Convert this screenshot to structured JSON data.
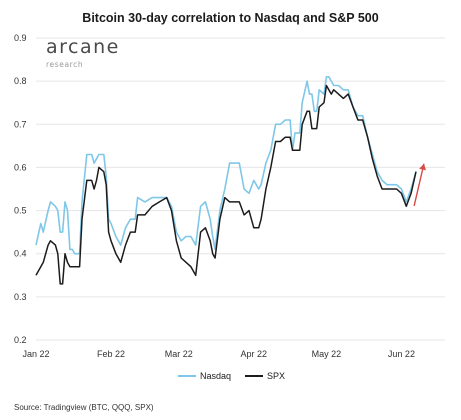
{
  "chart_data": {
    "type": "line",
    "title": "Bitcoin 30-day correlation to Nasdaq and S&P 500",
    "xlabel": "",
    "ylabel": "",
    "x_ticks": [
      "Jan 22",
      "Feb 22",
      "Mar 22",
      "Apr 22",
      "May 22",
      "Jun 22"
    ],
    "x_tick_dates": [
      "2022-01-01",
      "2022-02-01",
      "2022-03-01",
      "2022-04-01",
      "2022-05-01",
      "2022-06-01"
    ],
    "x_range": [
      "2022-01-01",
      "2022-06-19"
    ],
    "y_ticks": [
      "0.2",
      "0.3",
      "0.4",
      "0.5",
      "0.6",
      "0.7",
      "0.8",
      "0.9"
    ],
    "ylim": [
      0.2,
      0.9
    ],
    "grid": "horizontal",
    "legend_position": "bottom-center",
    "series": [
      {
        "name": "Nasdaq",
        "color": "#7fc7e8",
        "points": [
          [
            "2022-01-01",
            0.42
          ],
          [
            "2022-01-03",
            0.47
          ],
          [
            "2022-01-04",
            0.45
          ],
          [
            "2022-01-06",
            0.5
          ],
          [
            "2022-01-07",
            0.52
          ],
          [
            "2022-01-09",
            0.51
          ],
          [
            "2022-01-10",
            0.5
          ],
          [
            "2022-01-11",
            0.45
          ],
          [
            "2022-01-12",
            0.45
          ],
          [
            "2022-01-13",
            0.52
          ],
          [
            "2022-01-14",
            0.5
          ],
          [
            "2022-01-15",
            0.41
          ],
          [
            "2022-01-16",
            0.41
          ],
          [
            "2022-01-17",
            0.4
          ],
          [
            "2022-01-19",
            0.4
          ],
          [
            "2022-01-20",
            0.52
          ],
          [
            "2022-01-22",
            0.63
          ],
          [
            "2022-01-24",
            0.63
          ],
          [
            "2022-01-25",
            0.61
          ],
          [
            "2022-01-26",
            0.62
          ],
          [
            "2022-01-27",
            0.63
          ],
          [
            "2022-01-29",
            0.63
          ],
          [
            "2022-01-30",
            0.58
          ],
          [
            "2022-01-31",
            0.48
          ],
          [
            "2022-02-01",
            0.47
          ],
          [
            "2022-02-03",
            0.44
          ],
          [
            "2022-02-05",
            0.42
          ],
          [
            "2022-02-07",
            0.46
          ],
          [
            "2022-02-09",
            0.48
          ],
          [
            "2022-02-11",
            0.48
          ],
          [
            "2022-02-12",
            0.53
          ],
          [
            "2022-02-15",
            0.52
          ],
          [
            "2022-02-18",
            0.53
          ],
          [
            "2022-02-21",
            0.53
          ],
          [
            "2022-02-24",
            0.53
          ],
          [
            "2022-02-26",
            0.51
          ],
          [
            "2022-02-28",
            0.45
          ],
          [
            "2022-03-02",
            0.43
          ],
          [
            "2022-03-04",
            0.44
          ],
          [
            "2022-03-06",
            0.44
          ],
          [
            "2022-03-07",
            0.43
          ],
          [
            "2022-03-08",
            0.42
          ],
          [
            "2022-03-10",
            0.51
          ],
          [
            "2022-03-12",
            0.52
          ],
          [
            "2022-03-14",
            0.48
          ],
          [
            "2022-03-15",
            0.44
          ],
          [
            "2022-03-16",
            0.41
          ],
          [
            "2022-03-18",
            0.5
          ],
          [
            "2022-03-20",
            0.55
          ],
          [
            "2022-03-22",
            0.61
          ],
          [
            "2022-03-24",
            0.61
          ],
          [
            "2022-03-26",
            0.61
          ],
          [
            "2022-03-28",
            0.55
          ],
          [
            "2022-03-30",
            0.54
          ],
          [
            "2022-04-01",
            0.57
          ],
          [
            "2022-04-03",
            0.55
          ],
          [
            "2022-04-04",
            0.56
          ],
          [
            "2022-04-06",
            0.61
          ],
          [
            "2022-04-08",
            0.64
          ],
          [
            "2022-04-10",
            0.7
          ],
          [
            "2022-04-12",
            0.7
          ],
          [
            "2022-04-14",
            0.71
          ],
          [
            "2022-04-16",
            0.71
          ],
          [
            "2022-04-17",
            0.64
          ],
          [
            "2022-04-18",
            0.68
          ],
          [
            "2022-04-19",
            0.68
          ],
          [
            "2022-04-20",
            0.68
          ],
          [
            "2022-04-21",
            0.75
          ],
          [
            "2022-04-23",
            0.8
          ],
          [
            "2022-04-24",
            0.77
          ],
          [
            "2022-04-25",
            0.77
          ],
          [
            "2022-04-26",
            0.73
          ],
          [
            "2022-04-27",
            0.73
          ],
          [
            "2022-04-28",
            0.78
          ],
          [
            "2022-04-30",
            0.77
          ],
          [
            "2022-05-01",
            0.81
          ],
          [
            "2022-05-02",
            0.81
          ],
          [
            "2022-05-03",
            0.8
          ],
          [
            "2022-05-04",
            0.79
          ],
          [
            "2022-05-06",
            0.79
          ],
          [
            "2022-05-08",
            0.78
          ],
          [
            "2022-05-10",
            0.78
          ],
          [
            "2022-05-12",
            0.74
          ],
          [
            "2022-05-14",
            0.72
          ],
          [
            "2022-05-16",
            0.72
          ],
          [
            "2022-05-18",
            0.67
          ],
          [
            "2022-05-20",
            0.63
          ],
          [
            "2022-05-22",
            0.59
          ],
          [
            "2022-05-24",
            0.57
          ],
          [
            "2022-05-26",
            0.56
          ],
          [
            "2022-05-28",
            0.56
          ],
          [
            "2022-05-30",
            0.56
          ],
          [
            "2022-06-01",
            0.55
          ],
          [
            "2022-06-03",
            0.52
          ],
          [
            "2022-06-05",
            0.55
          ],
          [
            "2022-06-07",
            0.59
          ]
        ]
      },
      {
        "name": "SPX",
        "color": "#1c1c1c",
        "points": [
          [
            "2022-01-01",
            0.35
          ],
          [
            "2022-01-03",
            0.37
          ],
          [
            "2022-01-04",
            0.38
          ],
          [
            "2022-01-06",
            0.42
          ],
          [
            "2022-01-07",
            0.43
          ],
          [
            "2022-01-09",
            0.42
          ],
          [
            "2022-01-10",
            0.4
          ],
          [
            "2022-01-11",
            0.33
          ],
          [
            "2022-01-12",
            0.33
          ],
          [
            "2022-01-13",
            0.4
          ],
          [
            "2022-01-14",
            0.38
          ],
          [
            "2022-01-15",
            0.37
          ],
          [
            "2022-01-16",
            0.37
          ],
          [
            "2022-01-17",
            0.37
          ],
          [
            "2022-01-19",
            0.37
          ],
          [
            "2022-01-20",
            0.48
          ],
          [
            "2022-01-22",
            0.57
          ],
          [
            "2022-01-24",
            0.57
          ],
          [
            "2022-01-25",
            0.55
          ],
          [
            "2022-01-26",
            0.57
          ],
          [
            "2022-01-27",
            0.6
          ],
          [
            "2022-01-29",
            0.59
          ],
          [
            "2022-01-30",
            0.56
          ],
          [
            "2022-01-31",
            0.45
          ],
          [
            "2022-02-01",
            0.43
          ],
          [
            "2022-02-03",
            0.4
          ],
          [
            "2022-02-05",
            0.38
          ],
          [
            "2022-02-07",
            0.42
          ],
          [
            "2022-02-09",
            0.45
          ],
          [
            "2022-02-11",
            0.45
          ],
          [
            "2022-02-12",
            0.49
          ],
          [
            "2022-02-15",
            0.49
          ],
          [
            "2022-02-18",
            0.51
          ],
          [
            "2022-02-21",
            0.52
          ],
          [
            "2022-02-24",
            0.53
          ],
          [
            "2022-02-26",
            0.5
          ],
          [
            "2022-02-28",
            0.43
          ],
          [
            "2022-03-02",
            0.39
          ],
          [
            "2022-03-04",
            0.38
          ],
          [
            "2022-03-06",
            0.37
          ],
          [
            "2022-03-07",
            0.36
          ],
          [
            "2022-03-08",
            0.35
          ],
          [
            "2022-03-10",
            0.45
          ],
          [
            "2022-03-12",
            0.46
          ],
          [
            "2022-03-14",
            0.43
          ],
          [
            "2022-03-15",
            0.4
          ],
          [
            "2022-03-16",
            0.39
          ],
          [
            "2022-03-18",
            0.48
          ],
          [
            "2022-03-20",
            0.53
          ],
          [
            "2022-03-22",
            0.52
          ],
          [
            "2022-03-24",
            0.52
          ],
          [
            "2022-03-26",
            0.52
          ],
          [
            "2022-03-28",
            0.49
          ],
          [
            "2022-03-30",
            0.5
          ],
          [
            "2022-04-01",
            0.46
          ],
          [
            "2022-04-03",
            0.46
          ],
          [
            "2022-04-04",
            0.48
          ],
          [
            "2022-04-06",
            0.55
          ],
          [
            "2022-04-08",
            0.6
          ],
          [
            "2022-04-10",
            0.66
          ],
          [
            "2022-04-12",
            0.66
          ],
          [
            "2022-04-14",
            0.67
          ],
          [
            "2022-04-16",
            0.67
          ],
          [
            "2022-04-17",
            0.64
          ],
          [
            "2022-04-18",
            0.64
          ],
          [
            "2022-04-19",
            0.64
          ],
          [
            "2022-04-20",
            0.64
          ],
          [
            "2022-04-21",
            0.7
          ],
          [
            "2022-04-23",
            0.73
          ],
          [
            "2022-04-24",
            0.73
          ],
          [
            "2022-04-25",
            0.69
          ],
          [
            "2022-04-26",
            0.69
          ],
          [
            "2022-04-27",
            0.69
          ],
          [
            "2022-04-28",
            0.74
          ],
          [
            "2022-04-30",
            0.75
          ],
          [
            "2022-05-01",
            0.79
          ],
          [
            "2022-05-02",
            0.78
          ],
          [
            "2022-05-03",
            0.77
          ],
          [
            "2022-05-04",
            0.78
          ],
          [
            "2022-05-06",
            0.77
          ],
          [
            "2022-05-08",
            0.76
          ],
          [
            "2022-05-10",
            0.77
          ],
          [
            "2022-05-12",
            0.74
          ],
          [
            "2022-05-14",
            0.71
          ],
          [
            "2022-05-16",
            0.71
          ],
          [
            "2022-05-18",
            0.67
          ],
          [
            "2022-05-20",
            0.62
          ],
          [
            "2022-05-22",
            0.58
          ],
          [
            "2022-05-24",
            0.55
          ],
          [
            "2022-05-26",
            0.55
          ],
          [
            "2022-05-28",
            0.55
          ],
          [
            "2022-05-30",
            0.55
          ],
          [
            "2022-06-01",
            0.54
          ],
          [
            "2022-06-03",
            0.51
          ],
          [
            "2022-06-05",
            0.54
          ],
          [
            "2022-06-07",
            0.59
          ]
        ]
      }
    ],
    "annotations": [
      {
        "type": "arrow",
        "color": "#d64b46",
        "from": [
          "2022-06-05",
          0.52
        ],
        "to": [
          "2022-06-07",
          0.59
        ]
      }
    ]
  },
  "logo": {
    "main": "arcane",
    "sub": "research"
  },
  "source": "Source: Tradingview (BTC, QQQ, SPX)"
}
